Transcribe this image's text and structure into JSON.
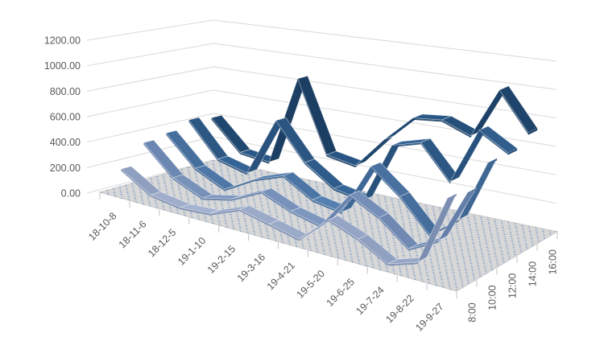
{
  "chart_data": {
    "type": "ribbon3d",
    "title": "",
    "legend": "none",
    "grid": true,
    "categories": [
      "18-10-8",
      "18-11-6",
      "18-12-5",
      "19-1-10",
      "19-2-15",
      "19-3-16",
      "19-4-21",
      "19-5-20",
      "19-6-25",
      "19-7-24",
      "19-8-22",
      "19-9-27"
    ],
    "series_axis_labels": [
      "8:00",
      "10:00",
      "12:00",
      "14:00",
      "16:00"
    ],
    "value_axis": {
      "min": 0,
      "max": 1200,
      "step": 200,
      "decimals": 2
    },
    "series": [
      {
        "name": "8:00",
        "values": [
          200,
          60,
          25,
          40,
          130,
          80,
          30,
          220,
          140,
          25,
          90,
          560
        ]
      },
      {
        "name": "10:00",
        "values": [
          360,
          140,
          40,
          90,
          200,
          110,
          60,
          330,
          220,
          55,
          160,
          530
        ]
      },
      {
        "name": "12:00",
        "values": [
          390,
          160,
          50,
          180,
          260,
          130,
          90,
          470,
          300,
          80,
          230,
          660
        ]
      },
      {
        "name": "14:00",
        "values": [
          450,
          180,
          120,
          580,
          300,
          150,
          110,
          560,
          620,
          380,
          780,
          660
        ]
      },
      {
        "name": "16:00",
        "values": [
          420,
          180,
          150,
          860,
          300,
          260,
          500,
          700,
          720,
          640,
          1000,
          730
        ]
      }
    ]
  },
  "style": {
    "background": "#ffffff",
    "gridline_color": "#d9d9d9",
    "tick_color": "#c3c3c3",
    "label_color": "#595959",
    "floor_fill": "#d8d8d8",
    "floor_edge": "#c9c9c9",
    "floor_dot_colors": [
      "#4f7cb0",
      "#7f9cc4"
    ],
    "ribbon_edge_highlight": "rgba(255,255,255,0.55)",
    "series_colors": [
      {
        "top": "#a9b6d3",
        "side": "#7a8cb0"
      },
      {
        "top": "#8aa2c8",
        "side": "#5f7ba6"
      },
      {
        "top": "#5c87ba",
        "side": "#3d6592"
      },
      {
        "top": "#3a6ca0",
        "side": "#27507a"
      },
      {
        "top": "#2c5c8e",
        "side": "#1b3e62"
      }
    ]
  }
}
